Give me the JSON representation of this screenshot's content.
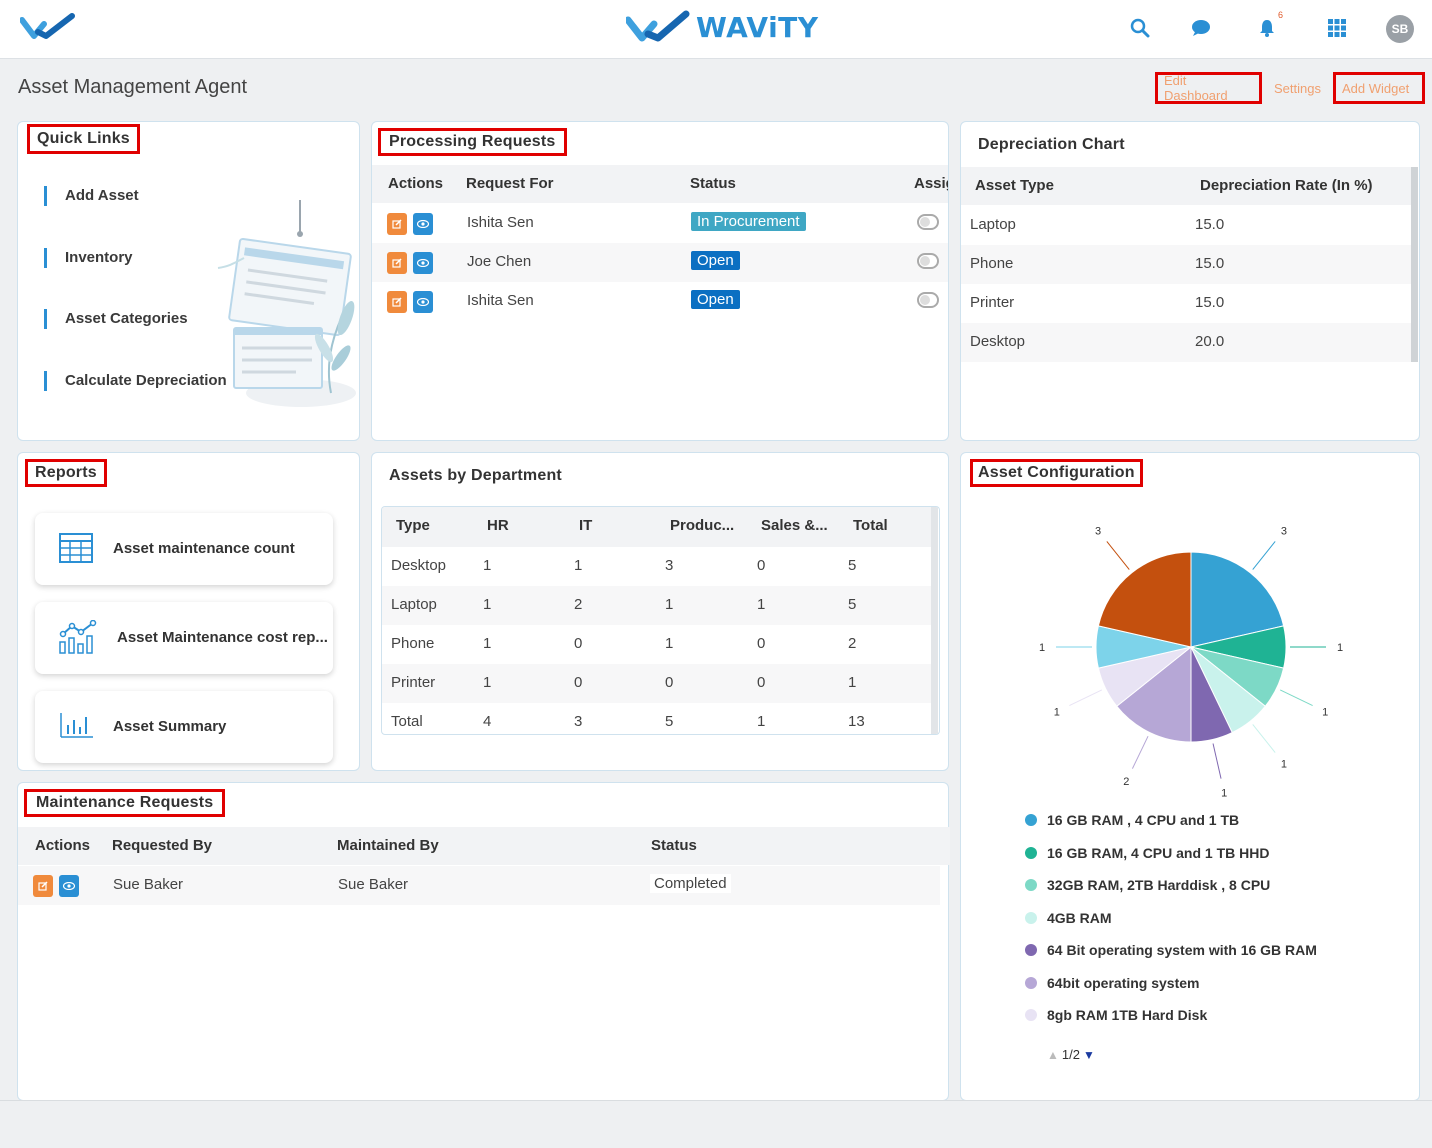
{
  "brand": {
    "name": "WAViTY"
  },
  "topbar": {
    "notification_count": "6",
    "avatar_initials": "SB"
  },
  "header": {
    "title": "Asset Management Agent",
    "edit_dashboard": "Edit Dashboard",
    "settings": "Settings",
    "add_widget": "Add Widget"
  },
  "quick_links": {
    "title": "Quick Links",
    "items": [
      "Add Asset",
      "Inventory",
      "Asset Categories",
      "Calculate Depreciation"
    ]
  },
  "processing_requests": {
    "title": "Processing Requests",
    "columns": [
      "Actions",
      "Request For",
      "Status",
      "Assig"
    ],
    "rows": [
      {
        "request_for": "Ishita Sen",
        "status": "In Procurement"
      },
      {
        "request_for": "Joe Chen",
        "status": "Open"
      },
      {
        "request_for": "Ishita Sen",
        "status": "Open"
      }
    ]
  },
  "depreciation": {
    "title": "Depreciation Chart",
    "columns": [
      "Asset Type",
      "Depreciation Rate (In %)"
    ],
    "rows": [
      {
        "type": "Laptop",
        "rate": "15.0"
      },
      {
        "type": "Phone",
        "rate": "15.0"
      },
      {
        "type": "Printer",
        "rate": "15.0"
      },
      {
        "type": "Desktop",
        "rate": "20.0"
      }
    ]
  },
  "reports": {
    "title": "Reports",
    "items": [
      "Asset maintenance count",
      "Asset Maintenance cost rep...",
      "Asset Summary"
    ]
  },
  "assets_by_department": {
    "title": "Assets by Department",
    "columns": [
      "Type",
      "HR",
      "IT",
      "Produc...",
      "Sales &...",
      "Total"
    ],
    "rows": [
      [
        "Desktop",
        "1",
        "1",
        "3",
        "0",
        "5"
      ],
      [
        "Laptop",
        "1",
        "2",
        "1",
        "1",
        "5"
      ],
      [
        "Phone",
        "1",
        "0",
        "1",
        "0",
        "2"
      ],
      [
        "Printer",
        "1",
        "0",
        "0",
        "0",
        "1"
      ],
      [
        "Total",
        "4",
        "3",
        "5",
        "1",
        "13"
      ]
    ]
  },
  "maintenance_requests": {
    "title": "Maintenance Requests",
    "columns": [
      "Actions",
      "Requested By",
      "Maintained By",
      "Status"
    ],
    "rows": [
      {
        "requested_by": "Sue Baker",
        "maintained_by": "Sue Baker",
        "status": "Completed"
      }
    ]
  },
  "asset_configuration": {
    "title": "Asset Configuration",
    "legend_pager": "1/2"
  },
  "colors": {
    "accent": "#2a8fd4",
    "procurement": "#3fa7c4",
    "open": "#0b6fc2",
    "edit": "#f08a3c",
    "highlight": "#e00000"
  },
  "chart_data": {
    "type": "pie",
    "title": "Asset Configuration",
    "slices": [
      {
        "label": "16 GB RAM , 4 CPU and 1 TB",
        "value": 3,
        "color": "#35a2d3"
      },
      {
        "label": "16 GB RAM, 4 CPU and 1 TB HHD",
        "value": 1,
        "color": "#1fb394"
      },
      {
        "label": "32GB RAM, 2TB Harddisk , 8 CPU",
        "value": 1,
        "color": "#7dd9c6"
      },
      {
        "label": "4GB RAM",
        "value": 1,
        "color": "#c9f2ec"
      },
      {
        "label": "64 Bit operating system with 16 GB RAM",
        "value": 1,
        "color": "#7f68b0"
      },
      {
        "label": "64bit operating system",
        "value": 2,
        "color": "#b6a7d6"
      },
      {
        "label": "8gb RAM 1TB Hard Disk",
        "value": 1,
        "color": "#e8e3f4"
      },
      {
        "label": "",
        "value": 1,
        "color": "#7dd3ea"
      },
      {
        "label": "",
        "value": 3,
        "color": "#c4500e"
      }
    ]
  }
}
